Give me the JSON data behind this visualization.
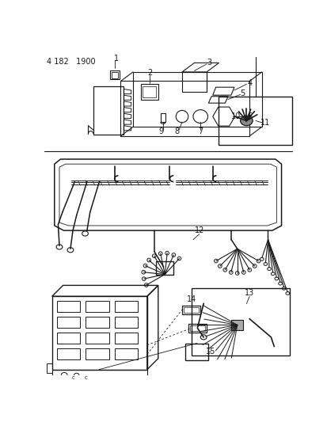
{
  "page_id": "4 182   1900",
  "bg_color": "#ffffff",
  "line_color": "#1a1a1a",
  "figsize": [
    4.14,
    5.33
  ],
  "dpi": 100
}
